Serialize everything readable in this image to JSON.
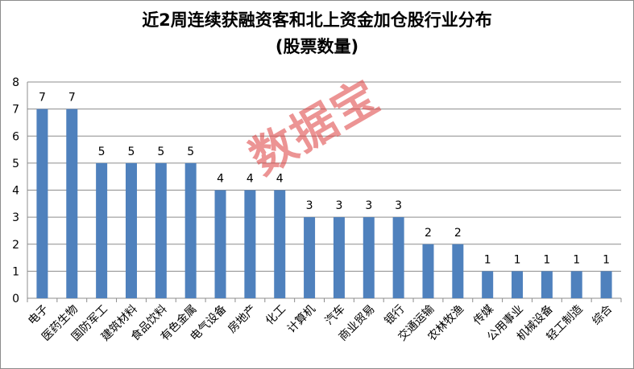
{
  "chart_data": {
    "type": "bar",
    "title": "近2周连续获融资客和北上资金加仓股行业分布",
    "subtitle": "(股票数量)",
    "categories": [
      "电子",
      "医药生物",
      "国防军工",
      "建筑材料",
      "食品饮料",
      "有色金属",
      "电气设备",
      "房地产",
      "化工",
      "计算机",
      "汽车",
      "商业贸易",
      "银行",
      "交通运输",
      "农林牧渔",
      "传媒",
      "公用事业",
      "机械设备",
      "轻工制造",
      "综合"
    ],
    "values": [
      7,
      7,
      5,
      5,
      5,
      5,
      4,
      4,
      4,
      3,
      3,
      3,
      3,
      2,
      2,
      1,
      1,
      1,
      1,
      1
    ],
    "ylim": [
      0,
      8
    ],
    "yticks": [
      "0",
      "1",
      "2",
      "3",
      "4",
      "5",
      "6",
      "7",
      "8"
    ],
    "grid": true,
    "legend": "none",
    "bar_color": "#4f81bd",
    "watermark": "数据宝"
  }
}
